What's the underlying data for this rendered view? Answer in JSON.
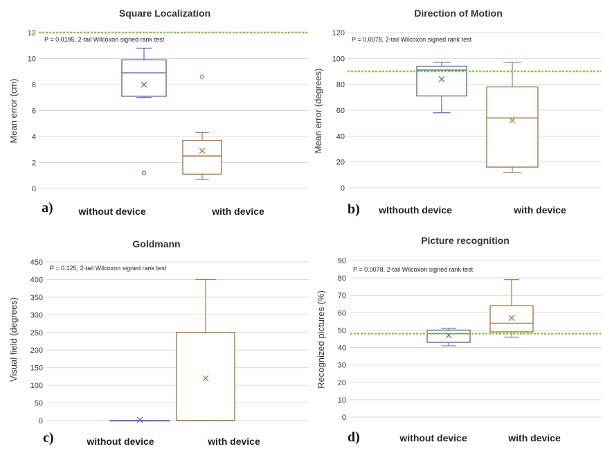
{
  "colors": {
    "without": "#5b6bb0",
    "with": "#a8784a",
    "grid": "#d9d9d9",
    "reference": "#8cc63f"
  },
  "chart_data": [
    {
      "type": "box",
      "letter": "a)",
      "title": "Square Localization",
      "ylabel": "Mean error (cm)",
      "note": "P = 0.0195, 2-tail Wilcoxon signed rank test",
      "ylim": [
        0,
        12
      ],
      "yticks": [
        0,
        2,
        4,
        6,
        8,
        10,
        12
      ],
      "reference_line": 12,
      "grid": true,
      "categories": [
        "without device",
        "with device"
      ],
      "boxes": [
        {
          "min": 7,
          "q1": 7.1,
          "median": 8.9,
          "q3": 9.9,
          "max": 10.8,
          "mean": 8,
          "outliers": [
            1.2
          ]
        },
        {
          "min": 0.7,
          "q1": 1.1,
          "median": 2.5,
          "q3": 3.7,
          "max": 4.3,
          "mean": 2.9,
          "outliers": [
            8.6
          ]
        }
      ]
    },
    {
      "type": "box",
      "letter": "b)",
      "title": "Direction of Motion",
      "ylabel": "Mean error (degrees)",
      "note": "P = 0.0078, 2-tail Wilcoxon signed rank test",
      "ylim": [
        0,
        120
      ],
      "yticks": [
        0,
        20,
        40,
        60,
        80,
        100,
        120
      ],
      "reference_line": 90,
      "grid": true,
      "categories": [
        "wIthouth device",
        "with device"
      ],
      "boxes": [
        {
          "min": 58,
          "q1": 71,
          "median": 91,
          "q3": 94,
          "max": 97,
          "mean": 84,
          "outliers": []
        },
        {
          "min": 12,
          "q1": 16,
          "median": 54,
          "q3": 78,
          "max": 97,
          "mean": 52,
          "outliers": []
        }
      ]
    },
    {
      "type": "box",
      "letter": "c)",
      "title": "Goldmann",
      "ylabel": "Visual field (degrees)",
      "note": "P = 0.125, 2-tail Wilcoxon signed rank test",
      "ylim": [
        0,
        450
      ],
      "yticks": [
        0,
        50,
        100,
        150,
        200,
        250,
        300,
        350,
        400,
        450
      ],
      "reference_line": null,
      "grid": true,
      "categories": [
        "without device",
        "with device"
      ],
      "boxes": [
        {
          "min": 0,
          "q1": 0,
          "median": 0,
          "q3": 0,
          "max": 0,
          "mean": 2,
          "outliers": []
        },
        {
          "min": 0,
          "q1": 0,
          "median": 0,
          "q3": 250,
          "max": 400,
          "mean": 120,
          "outliers": []
        }
      ]
    },
    {
      "type": "box",
      "letter": "d)",
      "title": "Picture recognition",
      "ylabel": "Recognized pictures (%)",
      "note": "P = 0.0078, 2-tail Wilcoxon signed rank test",
      "ylim": [
        0,
        90
      ],
      "yticks": [
        0,
        10,
        20,
        30,
        40,
        50,
        60,
        70,
        80,
        90
      ],
      "reference_line": 48,
      "grid": true,
      "categories": [
        "without device",
        "with device"
      ],
      "boxes": [
        {
          "min": 41,
          "q1": 43,
          "median": 48,
          "q3": 50,
          "max": 51,
          "mean": 47,
          "outliers": []
        },
        {
          "min": 46,
          "q1": 49,
          "median": 54,
          "q3": 64,
          "max": 79,
          "mean": 57,
          "outliers": []
        }
      ]
    }
  ]
}
